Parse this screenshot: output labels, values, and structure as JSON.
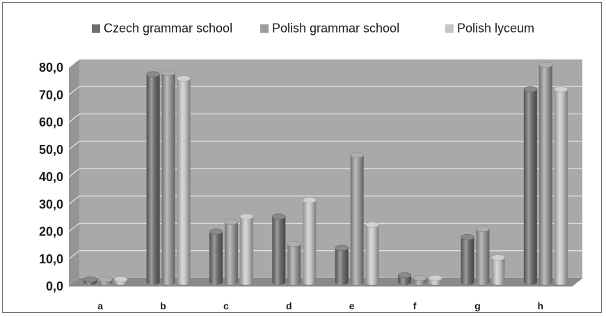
{
  "chart_data": {
    "type": "bar",
    "title": "",
    "xlabel": "",
    "ylabel": "",
    "categories": [
      "a",
      "b",
      "c",
      "d",
      "e",
      "f",
      "g",
      "h"
    ],
    "series": [
      {
        "name": "Czech grammar school",
        "color": "#6f6f6f",
        "values": [
          1.0,
          76.0,
          18.5,
          24.0,
          12.5,
          2.5,
          16.5,
          70.5
        ]
      },
      {
        "name": "Polish grammar school",
        "color": "#9c9c9c",
        "values": [
          1.0,
          76.5,
          22.0,
          14.0,
          46.5,
          1.5,
          19.5,
          79.5
        ]
      },
      {
        "name": "Polish lyceum",
        "color": "#c6c6c6",
        "values": [
          1.0,
          74.5,
          24.0,
          30.0,
          21.0,
          1.5,
          9.0,
          70.5
        ]
      }
    ],
    "ylim": [
      0,
      80
    ],
    "yticks": [
      "0,0",
      "10,0",
      "20,0",
      "30,0",
      "40,0",
      "50,0",
      "60,0",
      "70,0",
      "80,0"
    ],
    "grid": true,
    "legend_position": "top",
    "style": "3d-cylinder",
    "wall_color": "#a9a9a9",
    "floor_color": "#8a8a8a"
  }
}
